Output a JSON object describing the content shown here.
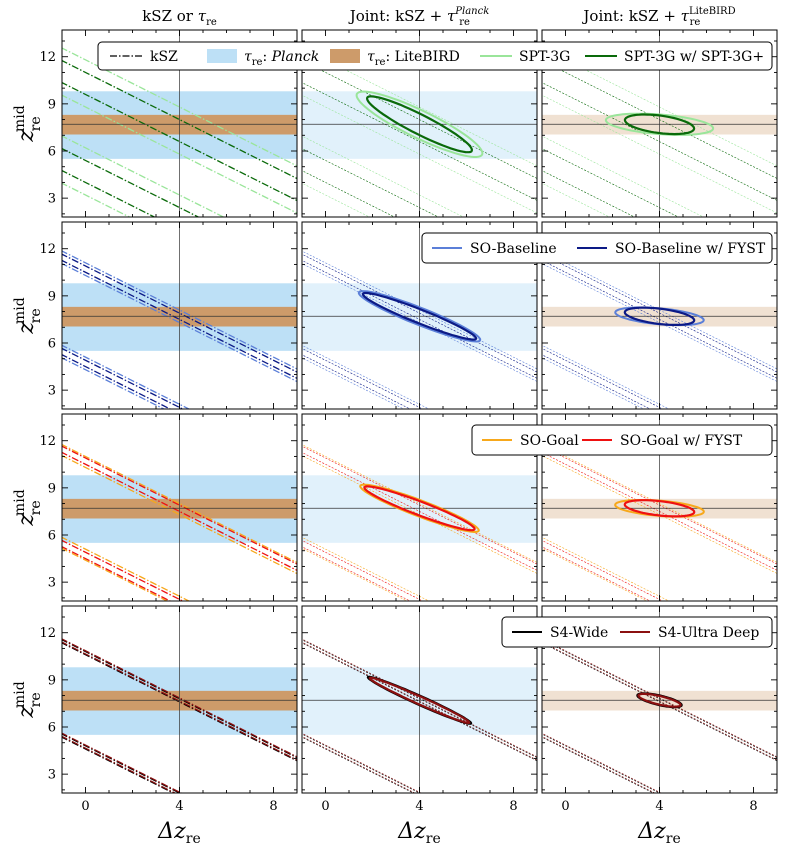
{
  "chart_data": {
    "type": "line",
    "title": "",
    "xlabel": "Δz",
    "xlabel_sub": "re",
    "ylabel": "z",
    "ylabel_sub": "re",
    "ylabel_sup": "mid",
    "xlim": [
      -1,
      9
    ],
    "ylim": [
      1.8,
      13.7
    ],
    "xticks": [
      0,
      4,
      8
    ],
    "yticks": [
      3,
      6,
      9,
      12
    ],
    "fiducial": {
      "dz": 4.0,
      "zmid": 7.7
    },
    "columns": [
      {
        "prefix": "kSZ or ",
        "tau": "τ",
        "sub": "re",
        "sup": ""
      },
      {
        "prefix": "Joint: kSZ + ",
        "tau": "τ",
        "sub": "re",
        "sup": "Planck"
      },
      {
        "prefix": "Joint: kSZ + ",
        "tau": "τ",
        "sub": "re",
        "sup": "LiteBIRD"
      }
    ],
    "tau_priors": {
      "planck": {
        "label": "Planck",
        "zmid_range": [
          5.5,
          9.8
        ],
        "color": "#bde0f6"
      },
      "litebird": {
        "label": "LiteBIRD",
        "zmid_range": [
          7.05,
          8.3
        ],
        "color": "#cd9b6a"
      }
    },
    "legend_tau_prefix": "τ",
    "legend_tau_sub": "re",
    "legend_tau_suffix": ": ",
    "legend_ksz": "kSZ",
    "rows": [
      {
        "series": [
          {
            "name": "SPT-3G",
            "color": "#9ae59a",
            "ksz_bands": [
              [
                8.8,
                11.8
              ],
              [
                3.2,
                6.2
              ]
            ],
            "planck_ellipse": {
              "cx": 4.0,
              "cy": 7.7,
              "a": 3.3,
              "b": 0.78,
              "angle": -37
            },
            "litebird_ellipse": {
              "cx": 4.0,
              "cy": 7.7,
              "a": 2.3,
              "b": 0.62,
              "angle": -7
            }
          },
          {
            "name": "SPT-3G w/ SPT-3G+",
            "color": "#0a6a0a",
            "ksz_bands": [
              [
                9.6,
                11.0
              ],
              [
                4.0,
                5.4
              ]
            ],
            "planck_ellipse": {
              "cx": 4.0,
              "cy": 7.7,
              "a": 2.8,
              "b": 0.55,
              "angle": -38
            },
            "litebird_ellipse": {
              "cx": 4.0,
              "cy": 7.7,
              "a": 1.5,
              "b": 0.55,
              "angle": -12
            }
          }
        ]
      },
      {
        "series": [
          {
            "name": "SO-Baseline",
            "color": "#5b7fd8",
            "ksz_bands": [
              [
                10.3,
                11.1
              ],
              [
                4.3,
                5.1
              ]
            ],
            "planck_ellipse": {
              "cx": 4.0,
              "cy": 7.7,
              "a": 3.0,
              "b": 0.5,
              "angle": -31
            },
            "litebird_ellipse": {
              "cx": 4.0,
              "cy": 7.7,
              "a": 1.9,
              "b": 0.5,
              "angle": -8
            }
          },
          {
            "name": "SO-Baseline w/ FYST",
            "color": "#0c1a86",
            "ksz_bands": [
              [
                10.5,
                10.9
              ],
              [
                4.5,
                4.9
              ]
            ],
            "planck_ellipse": {
              "cx": 4.0,
              "cy": 7.7,
              "a": 2.8,
              "b": 0.4,
              "angle": -31
            },
            "litebird_ellipse": {
              "cx": 4.0,
              "cy": 7.7,
              "a": 1.5,
              "b": 0.48,
              "angle": -11
            }
          }
        ]
      },
      {
        "series": [
          {
            "name": "SO-Goal",
            "color": "#f7a81b",
            "ksz_bands": [
              [
                10.3,
                11.0
              ],
              [
                4.4,
                5.1
              ]
            ],
            "planck_ellipse": {
              "cx": 4.0,
              "cy": 7.7,
              "a": 2.9,
              "b": 0.47,
              "angle": -30
            },
            "litebird_ellipse": {
              "cx": 4.0,
              "cy": 7.7,
              "a": 1.9,
              "b": 0.48,
              "angle": -7
            }
          },
          {
            "name": "SO-Goal w/ FYST",
            "color": "#ee1111",
            "ksz_bands": [
              [
                10.5,
                10.9
              ],
              [
                4.5,
                4.9
              ]
            ],
            "planck_ellipse": {
              "cx": 4.0,
              "cy": 7.7,
              "a": 2.7,
              "b": 0.4,
              "angle": -30
            },
            "litebird_ellipse": {
              "cx": 4.0,
              "cy": 7.7,
              "a": 1.5,
              "b": 0.45,
              "angle": -10
            }
          }
        ]
      },
      {
        "series": [
          {
            "name": "S4-Wide",
            "color": "#000000",
            "ksz_bands": [
              [
                10.6,
                10.8
              ],
              [
                4.6,
                4.8
              ]
            ],
            "planck_ellipse": {
              "cx": 4.0,
              "cy": 7.7,
              "a": 2.65,
              "b": 0.26,
              "angle": -34
            },
            "litebird_ellipse": {
              "cx": 4.0,
              "cy": 7.7,
              "a": 1.0,
              "b": 0.3,
              "angle": -20
            }
          },
          {
            "name": "S4-Ultra Deep",
            "color": "#8b1010",
            "ksz_bands": [
              [
                10.65,
                10.85
              ],
              [
                4.65,
                4.85
              ]
            ],
            "planck_ellipse": {
              "cx": 4.0,
              "cy": 7.7,
              "a": 2.55,
              "b": 0.22,
              "angle": -34
            },
            "litebird_ellipse": {
              "cx": 4.0,
              "cy": 7.7,
              "a": 0.95,
              "b": 0.26,
              "angle": -20
            }
          }
        ]
      }
    ]
  }
}
